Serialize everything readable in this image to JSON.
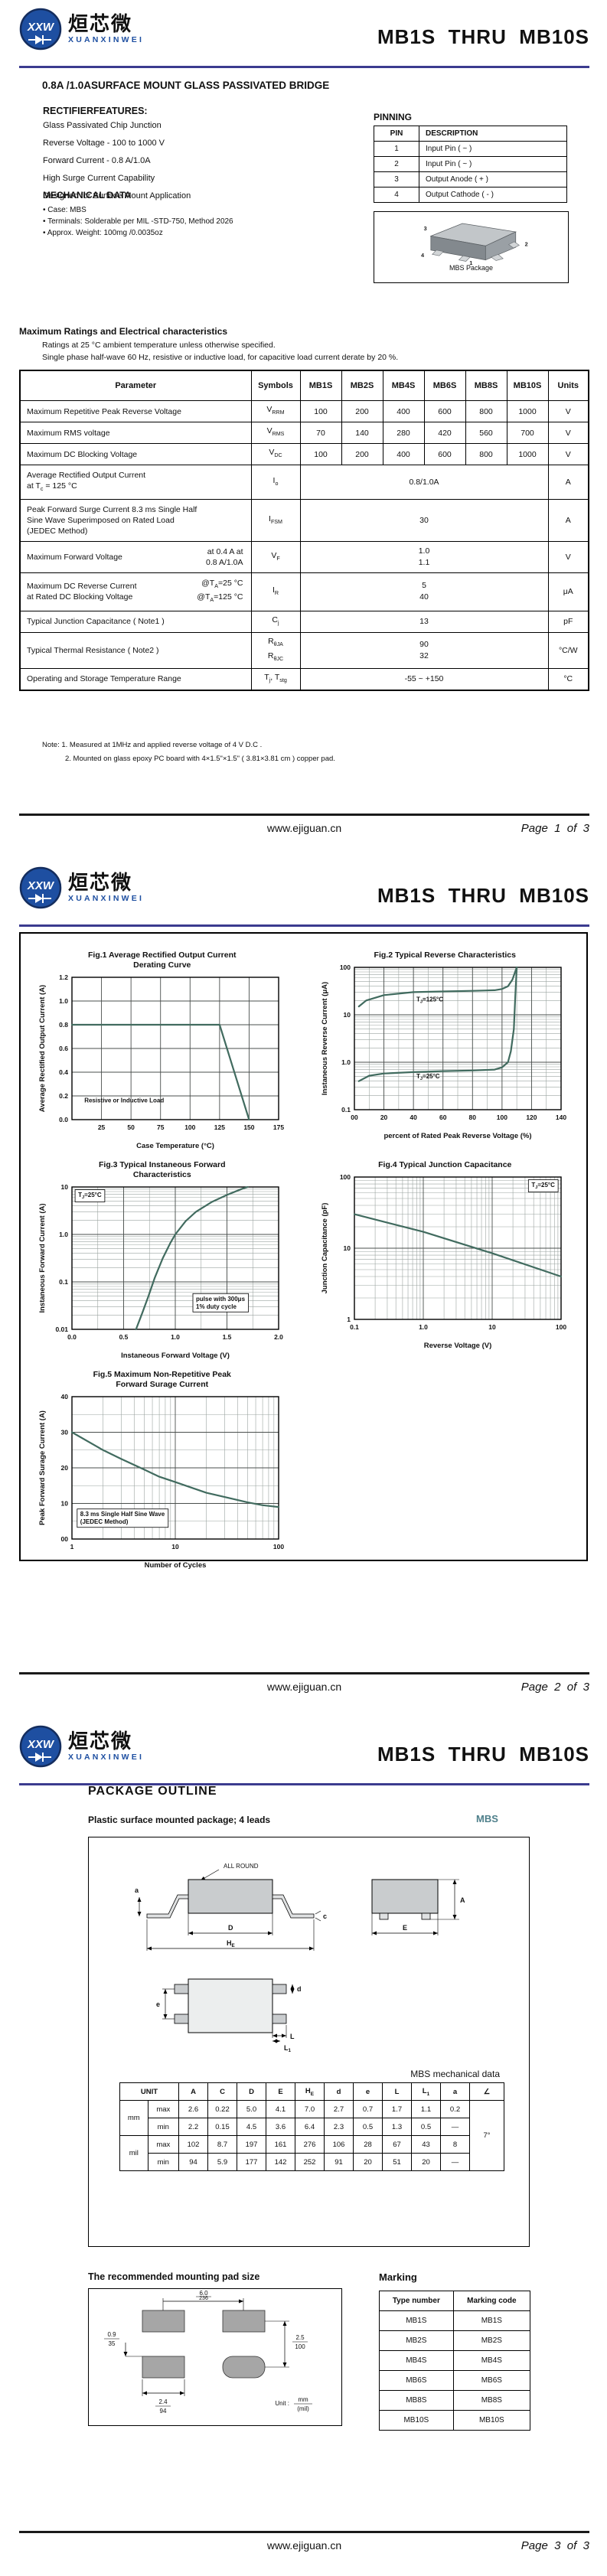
{
  "header": {
    "logo": {
      "monogram": "XXW",
      "cn": "烜芯微",
      "romanized": "XUANXINWEI"
    },
    "title": "MB1S  THRU  MB10S"
  },
  "footer": {
    "site": "www.ejiguan.cn",
    "pages": [
      "Page  1  of  3",
      "Page  2  of  3",
      "Page  3  of  3"
    ]
  },
  "colors": {
    "header_rule": "#3b3b8f",
    "logo_blue": "#1e4fa1",
    "accent_teal": "#4e7f8a",
    "curve": "#416b5f",
    "grid_minor": "#9ba4a0",
    "grid_major": "#4a4f4d",
    "pad_fill": "#a6a6a6",
    "package_gray": "#c2c6c9"
  },
  "page1": {
    "product_title": "0.8A /1.0ASURFACE MOUNT GLASS PASSIVATED BRIDGE",
    "features_heading": "RECTIFIERFEATURES:",
    "features": [
      "Glass Passivated Chip Junction",
      "Reverse Voltage - 100 to 1000 V",
      "Forward Current - 0.8 A/1.0A",
      "High Surge Current Capability",
      "Designed for Surface Mount Application"
    ],
    "mech_heading": "MECHANICAL DATA",
    "mech_items": [
      "• Case: MBS",
      "• Terminals: Solderable per MIL -STD-750, Method 2026",
      "• Approx. Weight: 100mg /0.0035oz"
    ],
    "pinning": {
      "heading": "PINNING",
      "headers": [
        "PIN",
        "DESCRIPTION"
      ],
      "rows": [
        [
          "1",
          "Input Pin ( ~ )"
        ],
        [
          "2",
          "Input Pin ( ~ )"
        ],
        [
          "3",
          "Output Anode ( + )"
        ],
        [
          "4",
          "Output Cathode ( - )"
        ]
      ]
    },
    "package_caption": "MBS Package",
    "package_pins": {
      "p1": "1",
      "p2": "2",
      "p3": "3",
      "p4": "4"
    },
    "ratings_heading": "Maximum Ratings and Electrical characteristics",
    "ratings_sub1": "Ratings at 25 °C ambient temperature unless otherwise specified.",
    "ratings_sub2": "Single phase half-wave 60 Hz, resistive or inductive load, for capacitive load current derate by 20 %.",
    "ratings_table": {
      "headers": [
        "Parameter",
        "Symbols",
        "MB1S",
        "MB2S",
        "MB4S",
        "MB6S",
        "MB8S",
        "MB10S",
        "Units"
      ],
      "rows": [
        {
          "param": [
            "Maximum Repetitive Peak Reverse Voltage"
          ],
          "symbol": [
            "V{RRM}"
          ],
          "values": [
            "100",
            "200",
            "400",
            "600",
            "800",
            "1000"
          ],
          "unit": "V"
        },
        {
          "param": [
            "Maximum RMS voltage"
          ],
          "symbol": [
            "V{RMS}"
          ],
          "values": [
            "70",
            "140",
            "280",
            "420",
            "560",
            "700"
          ],
          "unit": "V"
        },
        {
          "param": [
            "Maximum DC Blocking Voltage"
          ],
          "symbol": [
            "V{DC}"
          ],
          "values": [
            "100",
            "200",
            "400",
            "600",
            "800",
            "1000"
          ],
          "unit": "V"
        },
        {
          "param": [
            "Average Rectified Output Current",
            "at T{c} = 125 °C"
          ],
          "symbol": [
            "I{o}"
          ],
          "span": [
            "0.8/1.0A"
          ],
          "unit": "A"
        },
        {
          "param": [
            "Peak Forward Surge Current 8.3 ms Single Half",
            "Sine Wave Superimposed on Rated Load",
            "(JEDEC Method)"
          ],
          "symbol": [
            "I{FSM}"
          ],
          "span": [
            "30"
          ],
          "unit": "A"
        },
        {
          "param": [
            "Maximum  Forward Voltage"
          ],
          "param_right": [
            "at 0.4 A at",
            "0.8 A/1.0A"
          ],
          "symbol": [
            "V{F}"
          ],
          "span": [
            "1.0",
            "1.1"
          ],
          "unit": "V"
        },
        {
          "param": [
            "Maximum DC Reverse Current",
            "at Rated DC Blocking Voltage"
          ],
          "param_right": [
            "@T{A}=25 °C",
            "@T{A}=125 °C"
          ],
          "symbol": [
            "I{R}"
          ],
          "span": [
            "5",
            "40"
          ],
          "unit": "μA"
        },
        {
          "param": [
            "Typical Junction Capacitance ( Note1 )"
          ],
          "symbol": [
            "C{j}"
          ],
          "span": [
            "13"
          ],
          "unit": "pF"
        },
        {
          "param": [
            "Typical Thermal Resistance ( Note2 )"
          ],
          "symbol": [
            "R{θJA}",
            "R{θJC}"
          ],
          "span": [
            "90",
            "32"
          ],
          "unit": "°C/W"
        },
        {
          "param": [
            "Operating and Storage Temperature Range"
          ],
          "symbol": [
            "T{j}, T{stg}"
          ],
          "span": [
            "-55 ~ +150"
          ],
          "unit": "°C"
        }
      ]
    },
    "notes": [
      "Note:  1. Measured at 1MHz and applied reverse voltage of 4 V D.C .",
      "2. Mounted on glass epoxy PC board with 4×1.5\"×1.5\" ( 3.81×3.81 cm ) copper pad."
    ]
  },
  "chart_data": [
    {
      "type": "line",
      "title": "Fig.1  Average Rectified Output Current\nDerating Curve",
      "xlabel": "Case Temperature (°C)",
      "ylabel": "Average Rectified Output Current (A)",
      "xscale": "linear",
      "yscale": "linear",
      "xlim": [
        0,
        175
      ],
      "ylim": [
        0,
        1.2
      ],
      "xticks": [
        25,
        50,
        75,
        100,
        125,
        150,
        175
      ],
      "xtick_labels": [
        "25",
        "50",
        "75",
        "100",
        "125",
        "150",
        "175"
      ],
      "yticks": [
        0,
        0.2,
        0.4,
        0.6,
        0.8,
        1.0,
        1.2
      ],
      "ytick_labels": [
        "0.0",
        "0.2",
        "0.4",
        "0.6",
        "0.8",
        "1.0",
        "1.2"
      ],
      "series": [
        {
          "name": "derating",
          "points": [
            [
              0,
              0.8
            ],
            [
              125,
              0.8
            ],
            [
              150,
              0
            ]
          ]
        }
      ],
      "annotations": [
        {
          "text": "Resistive or Inductive Load",
          "fx": 0.06,
          "fy": 0.88,
          "box": false,
          "anchor": "start"
        }
      ]
    },
    {
      "type": "line",
      "title": "Fig.2  Typical Reverse Characteristics",
      "xlabel": "percent of Rated  Peak Reverse Voltage (%)",
      "ylabel": "Instaneous Reverse Current (μA)",
      "xscale": "linear",
      "yscale": "log",
      "xlim": [
        0,
        140
      ],
      "ylim": [
        0.1,
        100
      ],
      "xminor": 10,
      "xticks": [
        0,
        20,
        40,
        60,
        80,
        100,
        120,
        140
      ],
      "xtick_labels": [
        "00",
        "20",
        "40",
        "60",
        "80",
        "100",
        "120",
        "140"
      ],
      "yticks": [
        0.1,
        1,
        10,
        100
      ],
      "ytick_labels": [
        "0.1",
        "1.0",
        "10",
        "100"
      ],
      "series": [
        {
          "name": "Tj=125°C",
          "points": [
            [
              3,
              15
            ],
            [
              8,
              20
            ],
            [
              20,
              26
            ],
            [
              40,
              30
            ],
            [
              60,
              31
            ],
            [
              80,
              32
            ],
            [
              95,
              33
            ],
            [
              100,
              35
            ],
            [
              104,
              40
            ],
            [
              107,
              55
            ],
            [
              109,
              82
            ],
            [
              110,
              100
            ]
          ]
        },
        {
          "name": "Tj=25°C",
          "points": [
            [
              3,
              0.4
            ],
            [
              10,
              0.52
            ],
            [
              20,
              0.58
            ],
            [
              40,
              0.62
            ],
            [
              60,
              0.65
            ],
            [
              80,
              0.67
            ],
            [
              95,
              0.7
            ],
            [
              100,
              0.78
            ],
            [
              104,
              1.0
            ],
            [
              106,
              1.7
            ],
            [
              108,
              5
            ],
            [
              109,
              25
            ],
            [
              110,
              100
            ]
          ]
        }
      ],
      "annotations": [
        {
          "text": "T{J}=125°C",
          "fx": 0.3,
          "fy": 0.24,
          "box": false,
          "anchor": "start"
        },
        {
          "text": "T{J}=25°C",
          "fx": 0.3,
          "fy": 0.78,
          "box": false,
          "anchor": "start"
        }
      ]
    },
    {
      "type": "line",
      "title": "Fig.3  Typical Instaneous Forward\nCharacteristics",
      "xlabel": "Instaneous Forward Voltage (V)",
      "ylabel": "Instaneous Forward Current (A)",
      "xscale": "linear",
      "yscale": "log",
      "xlim": [
        0,
        2
      ],
      "ylim": [
        0.01,
        10
      ],
      "xminor": 0.25,
      "xticks": [
        0,
        0.5,
        1.0,
        1.5,
        2.0
      ],
      "xtick_labels": [
        "0.0",
        "0.5",
        "1.0",
        "1.5",
        "2.0"
      ],
      "yticks": [
        0.01,
        0.1,
        1,
        10
      ],
      "ytick_labels": [
        "0.01",
        "0.1",
        "1.0",
        "10"
      ],
      "series": [
        {
          "name": "forward",
          "points": [
            [
              0.62,
              0.01
            ],
            [
              0.68,
              0.022
            ],
            [
              0.74,
              0.05
            ],
            [
              0.8,
              0.12
            ],
            [
              0.88,
              0.32
            ],
            [
              0.95,
              0.65
            ],
            [
              1.0,
              1.0
            ],
            [
              1.1,
              1.9
            ],
            [
              1.2,
              3.0
            ],
            [
              1.35,
              4.8
            ],
            [
              1.5,
              6.8
            ],
            [
              1.65,
              9.2
            ],
            [
              1.7,
              10
            ]
          ]
        }
      ],
      "annotations": [
        {
          "text": "T{J}=25°C",
          "fx": 0.03,
          "fy": 0.07,
          "box": true,
          "anchor": "start"
        },
        {
          "text": "pulse with 300μs\n1% duty cycle",
          "fx": 0.6,
          "fy": 0.8,
          "box": true,
          "anchor": "start"
        }
      ]
    },
    {
      "type": "line",
      "title": "Fig.4  Typical Junction Capacitance",
      "xlabel": "Reverse  Voltage (V)",
      "ylabel": "Junction Capacitance (pF)",
      "xscale": "log",
      "yscale": "log",
      "xlim": [
        0.1,
        100
      ],
      "ylim": [
        1,
        100
      ],
      "xticks": [
        0.1,
        1,
        10,
        100
      ],
      "xtick_labels": [
        "0.1",
        "1.0",
        "10",
        "100"
      ],
      "yticks": [
        1,
        10,
        100
      ],
      "ytick_labels": [
        "1",
        "10",
        "100"
      ],
      "series": [
        {
          "name": "Cj",
          "points": [
            [
              0.1,
              30
            ],
            [
              1,
              17
            ],
            [
              10,
              8.5
            ],
            [
              100,
              4
            ]
          ]
        }
      ],
      "annotations": [
        {
          "text": "T{J}=25°C",
          "fx": 0.97,
          "fy": 0.07,
          "box": true,
          "anchor": "end"
        }
      ]
    },
    {
      "type": "line",
      "title": "Fig.5  Maximum Non-Repetitive Peak\nForward Surage Current",
      "xlabel": "Number of Cycles",
      "ylabel": "Peak Forward Surage Current (A)",
      "xscale": "log",
      "yscale": "linear",
      "xlim": [
        1,
        100
      ],
      "ylim": [
        0,
        40
      ],
      "yminor": 5,
      "xticks": [
        1,
        10,
        100
      ],
      "xtick_labels": [
        "1",
        "10",
        "100"
      ],
      "yticks": [
        0,
        10,
        20,
        30,
        40
      ],
      "ytick_labels": [
        "00",
        "10",
        "20",
        "30",
        "40"
      ],
      "series": [
        {
          "name": "surge",
          "points": [
            [
              1,
              30
            ],
            [
              2,
              25
            ],
            [
              3,
              22.5
            ],
            [
              5,
              19.5
            ],
            [
              7,
              17.5
            ],
            [
              10,
              16
            ],
            [
              20,
              13
            ],
            [
              30,
              11.8
            ],
            [
              50,
              10.3
            ],
            [
              70,
              9.5
            ],
            [
              100,
              9
            ]
          ]
        }
      ],
      "annotations": [
        {
          "text": "8.3 ms Single Half Sine Wave\n(JEDEC Method)",
          "fx": 0.04,
          "fy": 0.84,
          "box": true,
          "anchor": "start"
        }
      ]
    }
  ],
  "page3": {
    "heading": "PACKAGE OUTLINE",
    "subtitle": "Plastic surface mounted package; 4 leads",
    "mbs_label": "MBS",
    "mech_caption": "MBS mechanical data",
    "outline_labels": {
      "all_round": "ALL ROUND",
      "a": "a",
      "c": "c",
      "D": "D",
      "HE": "H{E}",
      "A": "A",
      "E": "E",
      "e": "e",
      "d": "d",
      "L": "L",
      "L1": "L{1}"
    },
    "mech_table": {
      "unit_header": "UNIT",
      "headers": [
        "A",
        "C",
        "D",
        "E",
        "H{E}",
        "d",
        "e",
        "L",
        "L{1}",
        "a",
        "∠"
      ],
      "angle": "7°",
      "groups": [
        {
          "unit": "mm",
          "rows": [
            {
              "label": "max",
              "vals": [
                "2.6",
                "0.22",
                "5.0",
                "4.1",
                "7.0",
                "2.7",
                "0.7",
                "1.7",
                "1.1",
                "0.2"
              ]
            },
            {
              "label": "min",
              "vals": [
                "2.2",
                "0.15",
                "4.5",
                "3.6",
                "6.4",
                "2.3",
                "0.5",
                "1.3",
                "0.5",
                "—"
              ]
            }
          ]
        },
        {
          "unit": "mil",
          "rows": [
            {
              "label": "max",
              "vals": [
                "102",
                "8.7",
                "197",
                "161",
                "276",
                "106",
                "28",
                "67",
                "43",
                "8"
              ]
            },
            {
              "label": "min",
              "vals": [
                "94",
                "5.9",
                "177",
                "142",
                "252",
                "91",
                "20",
                "51",
                "20",
                "—"
              ]
            }
          ]
        }
      ]
    },
    "pad_heading": "The recommended mounting pad size",
    "pad": {
      "top_mm": "6.0",
      "top_mil": "236",
      "left_mm": "0.9",
      "left_mil": "35",
      "bottom_mm": "2.4",
      "bottom_mil": "94",
      "right_mm": "2.5",
      "right_mil": "100",
      "unit_label": "Unit :",
      "unit_mm": "mm",
      "unit_mil": "(mil)"
    },
    "marking_heading": "Marking",
    "marking_table": {
      "headers": [
        "Type number",
        "Marking code"
      ],
      "rows": [
        [
          "MB1S",
          "MB1S"
        ],
        [
          "MB2S",
          "MB2S"
        ],
        [
          "MB4S",
          "MB4S"
        ],
        [
          "MB6S",
          "MB6S"
        ],
        [
          "MB8S",
          "MB8S"
        ],
        [
          "MB10S",
          "MB10S"
        ]
      ]
    }
  }
}
